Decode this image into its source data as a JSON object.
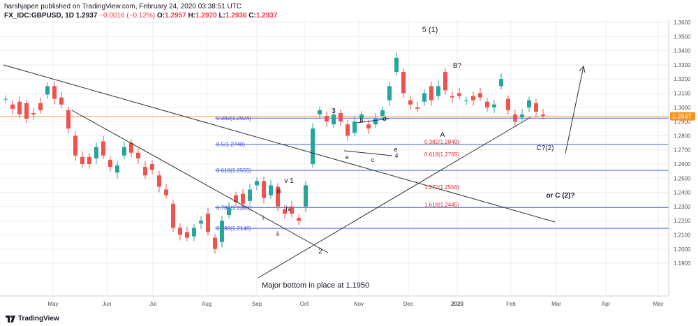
{
  "header": {
    "line1": "harshjapee published on TradingView.com, February 24, 2020 03:38:51 UTC",
    "symbol": "FX_IDC:GBPUSD, 1D",
    "price": "1.2937",
    "change": "−0.0016 (−0.12%)",
    "o_label": "O:",
    "o": "1.2957",
    "h_label": "H:",
    "h": "1.2970",
    "l_label": "L:",
    "l": "1.2936",
    "c_label": "C:",
    "c": "1.2937"
  },
  "brand": {
    "text": "TradingView",
    "icon": "tradingview-logo-icon"
  },
  "colors": {
    "up": "#26a69a",
    "down": "#ef5350",
    "fib": "#4a5ee8",
    "fib_label": "#3f51d8",
    "trend": "#303030",
    "price_line": "#f7a35c",
    "price_tag": "#f7941d",
    "grid": "#e9edf2",
    "proj": "#e32a2a"
  },
  "chart_data": {
    "type": "candlestick",
    "instrument": "GBPUSD",
    "timeframe": "1D",
    "x_ticks": [
      "May",
      "Jun",
      "Jul",
      "Aug",
      "Sep",
      "Oct",
      "Nov",
      "Dec",
      "2020",
      "Feb",
      "Mar",
      "Apr",
      "May"
    ],
    "y_ticks": [
      "1.3600",
      "1.3500",
      "1.3400",
      "1.3300",
      "1.3200",
      "1.3100",
      "1.3000",
      "1.2900",
      "1.2800",
      "1.2700",
      "1.2600",
      "1.2500",
      "1.2400",
      "1.2300",
      "1.2200",
      "1.2100",
      "1.2000",
      "1.1900"
    ],
    "ylim": [
      1.186,
      1.3635
    ],
    "last_price": "1.2937",
    "last_price_value": 1.2937,
    "price_path": [
      [
        1.306,
        1.306
      ],
      [
        1.302,
        1.299
      ],
      [
        1.304,
        1.295
      ],
      [
        1.303,
        1.292
      ],
      [
        1.296,
        1.295
      ],
      [
        1.303,
        1.298
      ],
      [
        1.309,
        1.315
      ],
      [
        1.315,
        1.306
      ],
      [
        1.307,
        1.302
      ],
      [
        1.298,
        1.285
      ],
      [
        1.28,
        1.266
      ],
      [
        1.265,
        1.26
      ],
      [
        1.265,
        1.26
      ],
      [
        1.264,
        1.272
      ],
      [
        1.276,
        1.266
      ],
      [
        1.263,
        1.258
      ],
      [
        1.254,
        1.259
      ],
      [
        1.266,
        1.272
      ],
      [
        1.275,
        1.268
      ],
      [
        1.268,
        1.264
      ],
      [
        1.258,
        1.252
      ],
      [
        1.26,
        1.256
      ],
      [
        1.252,
        1.244
      ],
      [
        1.242,
        1.238
      ],
      [
        1.232,
        1.215
      ],
      [
        1.215,
        1.21
      ],
      [
        1.212,
        1.208
      ],
      [
        1.209,
        1.215
      ],
      [
        1.218,
        1.22
      ],
      [
        1.225,
        1.212
      ],
      [
        1.208,
        1.2
      ],
      [
        1.205,
        1.22
      ],
      [
        1.224,
        1.229
      ],
      [
        1.238,
        1.233
      ],
      [
        1.239,
        1.232
      ],
      [
        1.234,
        1.242
      ],
      [
        1.245,
        1.248
      ],
      [
        1.248,
        1.236
      ],
      [
        1.238,
        1.245
      ],
      [
        1.244,
        1.23
      ],
      [
        1.228,
        1.225
      ],
      [
        1.23,
        1.225
      ],
      [
        1.222,
        1.22
      ],
      [
        1.23,
        1.245
      ],
      [
        1.26,
        1.285
      ],
      [
        1.295,
        1.298
      ],
      [
        1.294,
        1.29
      ],
      [
        1.288,
        1.295
      ],
      [
        1.296,
        1.29
      ],
      [
        1.288,
        1.28
      ],
      [
        1.282,
        1.29
      ],
      [
        1.292,
        1.295
      ],
      [
        1.288,
        1.285
      ],
      [
        1.288,
        1.292
      ],
      [
        1.294,
        1.298
      ],
      [
        1.305,
        1.315
      ],
      [
        1.325,
        1.335
      ],
      [
        1.325,
        1.31
      ],
      [
        1.305,
        1.302
      ],
      [
        1.3,
        1.299
      ],
      [
        1.304,
        1.31
      ],
      [
        1.315,
        1.305
      ],
      [
        1.308,
        1.315
      ],
      [
        1.325,
        1.312
      ],
      [
        1.308,
        1.307
      ],
      [
        1.31,
        1.308
      ],
      [
        1.305,
        1.305
      ],
      [
        1.308,
        1.305
      ],
      [
        1.31,
        1.307
      ],
      [
        1.304,
        1.3
      ],
      [
        1.3,
        1.302
      ],
      [
        1.315,
        1.32
      ],
      [
        1.306,
        1.298
      ],
      [
        1.295,
        1.29
      ],
      [
        1.293,
        1.295
      ],
      [
        1.3,
        1.305
      ],
      [
        1.303,
        1.297
      ],
      [
        1.295,
        1.294
      ]
    ]
  },
  "axis": {
    "y": [
      "1.3600",
      "1.3500",
      "1.3400",
      "1.3300",
      "1.3200",
      "1.3100",
      "1.3000",
      "1.2900",
      "1.2800",
      "1.2700",
      "1.2600",
      "1.2500",
      "1.2400",
      "1.2300",
      "1.2200",
      "1.2100",
      "1.2000",
      "1.1900"
    ],
    "x": [
      "May",
      "Jun",
      "Jul",
      "Aug",
      "Sep",
      "Oct",
      "Nov",
      "Dec",
      "2020",
      "Feb",
      "Mar",
      "Apr",
      "May"
    ],
    "price_tag": "1.2937"
  },
  "fib_lines": [
    {
      "label": "0.382(1.2924)",
      "value": 1.2924
    },
    {
      "label": "0.5(1.2740)",
      "value": 1.274
    },
    {
      "label": "0.618(1.2555)",
      "value": 1.2555
    },
    {
      "label": "0.786(1.2293)",
      "value": 1.2293
    },
    {
      "label": "0.886(1.2146)",
      "value": 1.2146
    }
  ],
  "projections": [
    {
      "label": "0.382(1.2840)"
    },
    {
      "label": "0.618(1.2765)"
    },
    {
      "label": "1.272(1.2556)"
    },
    {
      "label": "1.618(1.2445)"
    }
  ],
  "wave_labels": {
    "top": "5 (1)",
    "b": "B?",
    "a_big": "A",
    "c2": "C?(2)",
    "w3": "3",
    "wa": "a",
    "wb": "b",
    "wc": "c",
    "wd": "d",
    "we": "e",
    "w4": "4",
    "v1": "v 1",
    "iii": "iii",
    "iv": "iv",
    "i": "i",
    "ii": "ii",
    "w2": "2",
    "orc": "or C (2)?",
    "bottom": "Major bottom in place at 1.1950"
  }
}
